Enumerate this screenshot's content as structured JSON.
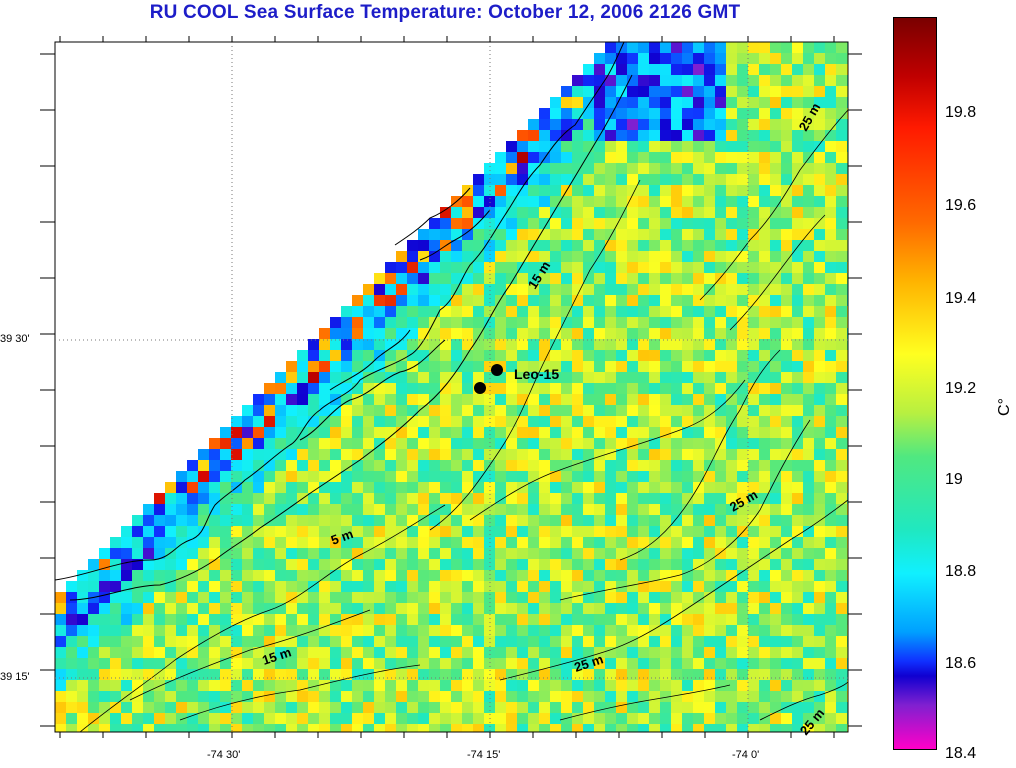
{
  "title": "RU COOL  Sea Surface Temperature:  October 12, 2006 2126 GMT",
  "axes": {
    "x_labels": [
      "-74 30'",
      "-74 15'",
      "-74 0'"
    ],
    "y_labels": [
      "39 30'",
      "39 15'"
    ]
  },
  "map": {
    "station_label": "Leo-15",
    "isobath_labels": [
      "25 m",
      "15 m",
      "5 m",
      "25 m",
      "15 m",
      "25 m",
      "25 m"
    ]
  },
  "colorbar": {
    "unit": "C°",
    "ticks": [
      "19.8",
      "19.6",
      "19.4",
      "19.2",
      "19",
      "18.8",
      "18.6",
      "18.4"
    ],
    "min": 18.4,
    "max": 20.0
  }
}
